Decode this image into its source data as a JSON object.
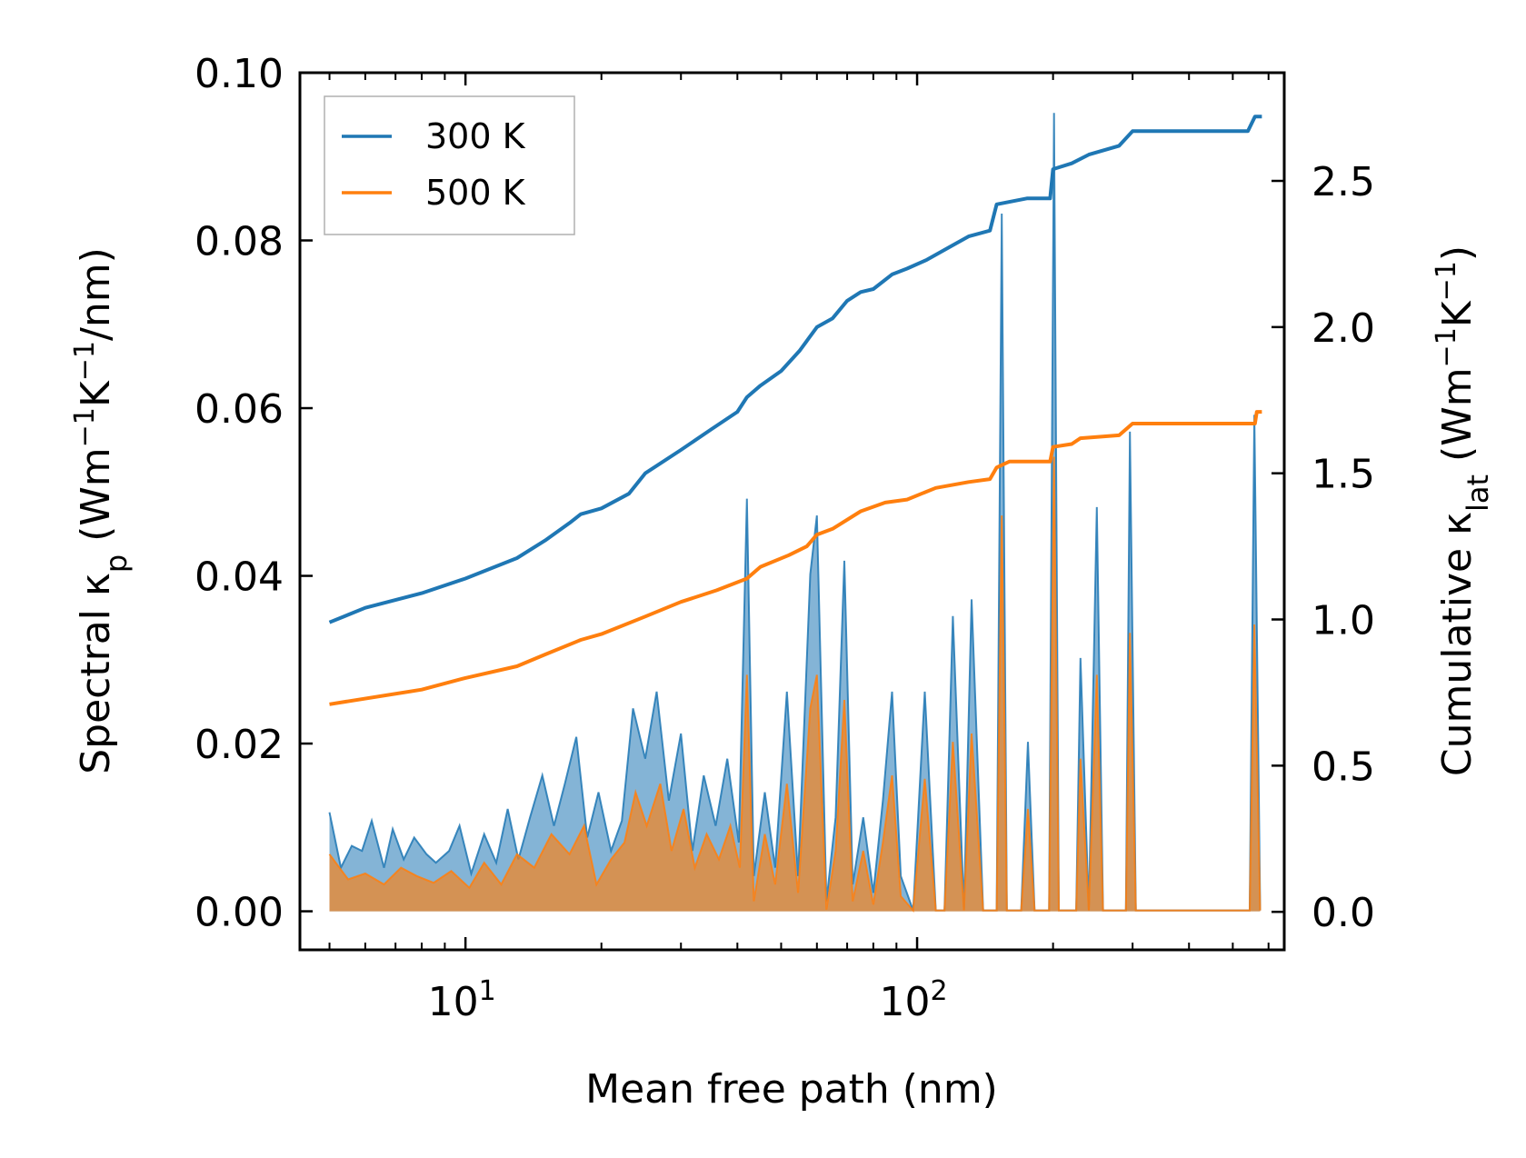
{
  "chart_data": {
    "type": "line",
    "xlabel": "Mean free path (nm)",
    "ylabel_left": {
      "prefix": "Spectral κ",
      "sub": "p",
      "units_a": " (Wm",
      "sup1": "−1",
      "units_b": "K",
      "sup2": "−1",
      "units_c": "/nm)"
    },
    "ylabel_right": {
      "prefix": "Cumulative κ",
      "sub": "lat",
      "units_a": " (Wm",
      "sup1": "−1",
      "units_b": "K",
      "sup2": "−1",
      "units_c": ")"
    },
    "xscale": "log",
    "xlim": [
      4.3,
      650
    ],
    "ylim_left": [
      -0.0046,
      0.1
    ],
    "ylim_right": [
      -0.13,
      2.87
    ],
    "x_major_ticks": [
      {
        "value": 10,
        "base": "10",
        "exp": "1"
      },
      {
        "value": 100,
        "base": "10",
        "exp": "2"
      }
    ],
    "x_minor_ticks": [
      5,
      6,
      7,
      8,
      9,
      20,
      30,
      40,
      50,
      60,
      70,
      80,
      90,
      200,
      300,
      400,
      500,
      600
    ],
    "y_left_ticks": [
      {
        "value": 0.0,
        "label": "0.00"
      },
      {
        "value": 0.02,
        "label": "0.02"
      },
      {
        "value": 0.04,
        "label": "0.04"
      },
      {
        "value": 0.06,
        "label": "0.06"
      },
      {
        "value": 0.08,
        "label": "0.08"
      },
      {
        "value": 0.1,
        "label": "0.10"
      }
    ],
    "y_right_ticks": [
      {
        "value": 0.0,
        "label": "0.0"
      },
      {
        "value": 0.5,
        "label": "0.5"
      },
      {
        "value": 1.0,
        "label": "1.0"
      },
      {
        "value": 1.5,
        "label": "1.5"
      },
      {
        "value": 2.0,
        "label": "2.0"
      },
      {
        "value": 2.5,
        "label": "2.5"
      }
    ],
    "legend_position": "top-left",
    "series": [
      {
        "name": "300 K",
        "color": "#1f77b4",
        "fill_color": "#1f77b4",
        "cumulative_axis": "right",
        "cumulative": [
          [
            5,
            0.99
          ],
          [
            6,
            1.04
          ],
          [
            8,
            1.09
          ],
          [
            10,
            1.14
          ],
          [
            13,
            1.21
          ],
          [
            15,
            1.27
          ],
          [
            17,
            1.33
          ],
          [
            18,
            1.36
          ],
          [
            20,
            1.38
          ],
          [
            23,
            1.43
          ],
          [
            25,
            1.5
          ],
          [
            30,
            1.58
          ],
          [
            35,
            1.65
          ],
          [
            40,
            1.71
          ],
          [
            42,
            1.76
          ],
          [
            45,
            1.8
          ],
          [
            50,
            1.85
          ],
          [
            55,
            1.92
          ],
          [
            60,
            2.0
          ],
          [
            65,
            2.03
          ],
          [
            70,
            2.09
          ],
          [
            75,
            2.12
          ],
          [
            80,
            2.13
          ],
          [
            88,
            2.18
          ],
          [
            95,
            2.2
          ],
          [
            105,
            2.23
          ],
          [
            120,
            2.28
          ],
          [
            130,
            2.31
          ],
          [
            145,
            2.33
          ],
          [
            150,
            2.42
          ],
          [
            175,
            2.44
          ],
          [
            197,
            2.44
          ],
          [
            200,
            2.54
          ],
          [
            220,
            2.56
          ],
          [
            240,
            2.59
          ],
          [
            280,
            2.62
          ],
          [
            300,
            2.67
          ],
          [
            540,
            2.67
          ],
          [
            560,
            2.72
          ],
          [
            580,
            2.72
          ]
        ],
        "spectral_axis": "left",
        "spectral": [
          [
            5,
            0.0118
          ],
          [
            5.3,
            0.0052
          ],
          [
            5.6,
            0.0078
          ],
          [
            5.9,
            0.0072
          ],
          [
            6.2,
            0.0108
          ],
          [
            6.6,
            0.0052
          ],
          [
            6.9,
            0.0098
          ],
          [
            7.3,
            0.0062
          ],
          [
            7.7,
            0.0088
          ],
          [
            8.2,
            0.0068
          ],
          [
            8.6,
            0.0058
          ],
          [
            9.2,
            0.0072
          ],
          [
            9.7,
            0.0102
          ],
          [
            10.3,
            0.0045
          ],
          [
            11,
            0.0092
          ],
          [
            11.7,
            0.0058
          ],
          [
            12.4,
            0.0122
          ],
          [
            13.1,
            0.0062
          ],
          [
            13.9,
            0.0112
          ],
          [
            14.8,
            0.0162
          ],
          [
            15.7,
            0.0102
          ],
          [
            16.6,
            0.0152
          ],
          [
            17.6,
            0.0208
          ],
          [
            18.6,
            0.0088
          ],
          [
            19.7,
            0.0142
          ],
          [
            21,
            0.0072
          ],
          [
            22.2,
            0.0108
          ],
          [
            23.5,
            0.0242
          ],
          [
            25,
            0.0182
          ],
          [
            26.5,
            0.0262
          ],
          [
            28.2,
            0.0132
          ],
          [
            30,
            0.0212
          ],
          [
            31.8,
            0.0072
          ],
          [
            33.7,
            0.0162
          ],
          [
            35.8,
            0.0102
          ],
          [
            38,
            0.0182
          ],
          [
            40.3,
            0.0082
          ],
          [
            42,
            0.0492
          ],
          [
            43.5,
            0.0042
          ],
          [
            46,
            0.0142
          ],
          [
            48.5,
            0.0052
          ],
          [
            51.5,
            0.0262
          ],
          [
            54.5,
            0.0042
          ],
          [
            58,
            0.0402
          ],
          [
            60,
            0.0472
          ],
          [
            63,
            0.0012
          ],
          [
            66,
            0.0112
          ],
          [
            69,
            0.0418
          ],
          [
            72,
            0.0032
          ],
          [
            76,
            0.0112
          ],
          [
            80,
            0.0022
          ],
          [
            84,
            0.0132
          ],
          [
            88,
            0.0262
          ],
          [
            92,
            0.0042
          ],
          [
            98,
            0.0001
          ],
          [
            104,
            0.0262
          ],
          [
            110,
            0.0001
          ],
          [
            115,
            0.0001
          ],
          [
            120,
            0.0352
          ],
          [
            127,
            0.0002
          ],
          [
            132,
            0.0372
          ],
          [
            140,
            0.0001
          ],
          [
            150,
            0.0001
          ],
          [
            154,
            0.0832
          ],
          [
            158,
            0.0001
          ],
          [
            170,
            0.0001
          ],
          [
            176,
            0.0202
          ],
          [
            182,
            0.0001
          ],
          [
            196,
            0.0001
          ],
          [
            201,
            0.0952
          ],
          [
            206,
            0.0001
          ],
          [
            225,
            0.0001
          ],
          [
            230,
            0.0302
          ],
          [
            240,
            0.0001
          ],
          [
            250,
            0.0482
          ],
          [
            258,
            0.0001
          ],
          [
            290,
            0.0001
          ],
          [
            296,
            0.0572
          ],
          [
            305,
            0.0001
          ],
          [
            545,
            0.0001
          ],
          [
            558,
            0.0592
          ],
          [
            575,
            0.0001
          ]
        ]
      },
      {
        "name": "500 K",
        "color": "#ff7f0e",
        "fill_color": "#ff7f0e",
        "cumulative_axis": "right",
        "cumulative": [
          [
            5,
            0.71
          ],
          [
            8,
            0.76
          ],
          [
            10,
            0.8
          ],
          [
            13,
            0.84
          ],
          [
            15,
            0.88
          ],
          [
            18,
            0.93
          ],
          [
            20,
            0.95
          ],
          [
            25,
            1.01
          ],
          [
            30,
            1.06
          ],
          [
            36,
            1.1
          ],
          [
            42,
            1.14
          ],
          [
            45,
            1.18
          ],
          [
            52,
            1.22
          ],
          [
            57,
            1.25
          ],
          [
            60,
            1.29
          ],
          [
            65,
            1.31
          ],
          [
            75,
            1.37
          ],
          [
            85,
            1.4
          ],
          [
            95,
            1.41
          ],
          [
            110,
            1.45
          ],
          [
            130,
            1.47
          ],
          [
            145,
            1.48
          ],
          [
            150,
            1.52
          ],
          [
            160,
            1.54
          ],
          [
            197,
            1.54
          ],
          [
            200,
            1.59
          ],
          [
            220,
            1.6
          ],
          [
            230,
            1.62
          ],
          [
            280,
            1.63
          ],
          [
            300,
            1.67
          ],
          [
            560,
            1.67
          ],
          [
            565,
            1.71
          ],
          [
            580,
            1.71
          ]
        ],
        "spectral_axis": "left",
        "spectral": [
          [
            5,
            0.0068
          ],
          [
            5.5,
            0.0038
          ],
          [
            6,
            0.0045
          ],
          [
            6.6,
            0.0032
          ],
          [
            7.2,
            0.0052
          ],
          [
            7.8,
            0.0042
          ],
          [
            8.5,
            0.0034
          ],
          [
            9.3,
            0.0048
          ],
          [
            10.2,
            0.0028
          ],
          [
            11,
            0.0058
          ],
          [
            12,
            0.0032
          ],
          [
            13,
            0.0068
          ],
          [
            14.2,
            0.0052
          ],
          [
            15.5,
            0.0092
          ],
          [
            17,
            0.0068
          ],
          [
            18.3,
            0.0102
          ],
          [
            19.5,
            0.0032
          ],
          [
            21,
            0.0062
          ],
          [
            22.5,
            0.0082
          ],
          [
            23.8,
            0.0142
          ],
          [
            25.2,
            0.0102
          ],
          [
            27,
            0.0152
          ],
          [
            28.6,
            0.0072
          ],
          [
            30.4,
            0.0122
          ],
          [
            32.2,
            0.0052
          ],
          [
            34.2,
            0.0092
          ],
          [
            36.4,
            0.0062
          ],
          [
            38.6,
            0.0102
          ],
          [
            40.5,
            0.0052
          ],
          [
            42,
            0.0282
          ],
          [
            43.5,
            0.0012
          ],
          [
            46,
            0.0092
          ],
          [
            48.5,
            0.0032
          ],
          [
            51.5,
            0.0152
          ],
          [
            54.5,
            0.0022
          ],
          [
            58,
            0.0242
          ],
          [
            60,
            0.0282
          ],
          [
            63,
            0.0002
          ],
          [
            66,
            0.0072
          ],
          [
            69,
            0.0252
          ],
          [
            72,
            0.0012
          ],
          [
            76,
            0.0072
          ],
          [
            80,
            0.0008
          ],
          [
            84,
            0.0082
          ],
          [
            88,
            0.0162
          ],
          [
            92,
            0.0018
          ],
          [
            98,
            0.0001
          ],
          [
            104,
            0.0158
          ],
          [
            110,
            0.0001
          ],
          [
            115,
            0.0001
          ],
          [
            120,
            0.0202
          ],
          [
            127,
            0.0001
          ],
          [
            132,
            0.0212
          ],
          [
            140,
            0.0001
          ],
          [
            150,
            0.0001
          ],
          [
            154,
            0.0472
          ],
          [
            158,
            0.0001
          ],
          [
            170,
            0.0001
          ],
          [
            176,
            0.0122
          ],
          [
            182,
            0.0001
          ],
          [
            196,
            0.0001
          ],
          [
            201,
            0.0542
          ],
          [
            206,
            0.0001
          ],
          [
            225,
            0.0001
          ],
          [
            230,
            0.0182
          ],
          [
            240,
            0.0001
          ],
          [
            250,
            0.0282
          ],
          [
            258,
            0.0001
          ],
          [
            290,
            0.0001
          ],
          [
            296,
            0.0332
          ],
          [
            305,
            0.0001
          ],
          [
            545,
            0.0001
          ],
          [
            558,
            0.0342
          ],
          [
            575,
            0.0001
          ]
        ]
      }
    ]
  }
}
